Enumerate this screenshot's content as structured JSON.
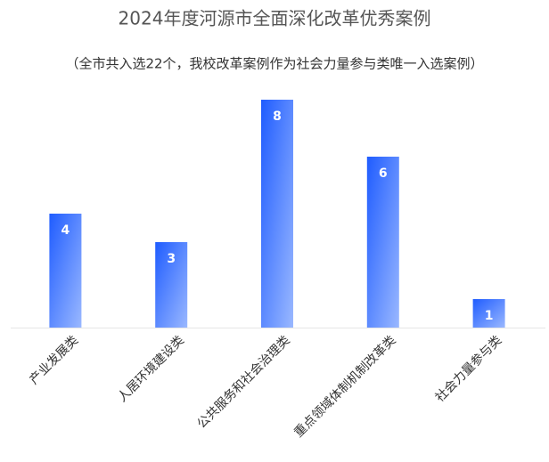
{
  "chart_data": {
    "type": "bar",
    "title": "2024年度河源市全面深化改革优秀案例",
    "subtitle": "（全市共入选22个，我校改革案例作为社会力量参与类唯一入选案例）",
    "categories": [
      "产业发展类",
      "人居环境建设类",
      "公共服务和社会治理类",
      "重点领域体制机制改革类",
      "社会力量参与类"
    ],
    "values": [
      4,
      3,
      8,
      6,
      1
    ],
    "color": "#2f6bff"
  }
}
